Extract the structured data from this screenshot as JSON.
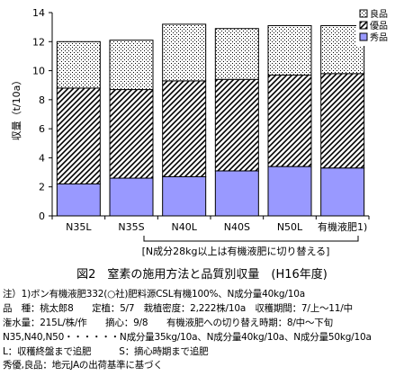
{
  "chart_data": {
    "type": "bar",
    "stacked": true,
    "ylabel": "収量（t/10a）",
    "ylim": [
      0,
      14
    ],
    "yticks": [
      0,
      2,
      4,
      6,
      8,
      10,
      12,
      14
    ],
    "categories": [
      "N35L",
      "N35S",
      "N40L",
      "N40S",
      "N50L",
      "有機液肥1)"
    ],
    "series": [
      {
        "name": "秀品",
        "values": [
          2.2,
          2.6,
          2.7,
          3.1,
          3.4,
          3.3
        ],
        "color": "#9999ff",
        "pattern": "solid"
      },
      {
        "name": "優品",
        "values": [
          6.6,
          6.1,
          6.6,
          6.3,
          6.3,
          6.5
        ],
        "color": "#000000",
        "pattern": "diagonal-hatch"
      },
      {
        "name": "良品",
        "values": [
          3.2,
          3.4,
          3.9,
          3.5,
          3.4,
          3.3
        ],
        "color": "#000000",
        "pattern": "dots"
      }
    ],
    "legend_position": "top-right",
    "grid": false,
    "bracket_label": "[N成分28kg以上は有機液肥に切り替える]",
    "title": "図2　窒素の施用方法と品質別収量　(H16年度)"
  },
  "notes": [
    "注）1)ボン有機液肥332(○社)肥料源CSL有機100%、N成分量40kg/10a",
    "品　種：桃太郎8　　定植：5/7　栽植密度：2,222株/10a　収穫期間：7/上〜11/中",
    "潅水量：215L/株/作　　摘心：9/8　　有機液肥への切り替え時期：8/中〜下旬",
    "N35,N40,N50・・・・・・N成分量35kg/10a、N成分量40kg/10a、N成分量50kg/10a",
    "L：収穫終盤まで追肥　　　S：摘心時期まで追肥",
    "秀優,良品：地元JAの出荷基準に基づく"
  ]
}
